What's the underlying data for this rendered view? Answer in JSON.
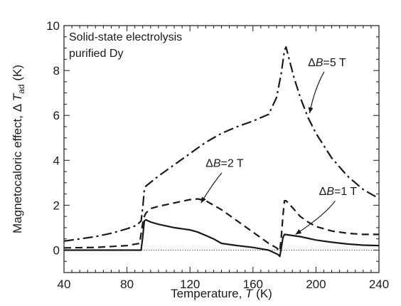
{
  "chart_data": {
    "type": "line",
    "title": "",
    "xlabel": "Temperature, T (K)",
    "ylabel": "Magnetocaloric effect, ΔT_ad (K)",
    "xlim": [
      40,
      240
    ],
    "ylim": [
      -1,
      10
    ],
    "x_ticks": [
      40,
      80,
      120,
      160,
      200,
      240
    ],
    "y_ticks": [
      0,
      2,
      4,
      6,
      8,
      10
    ],
    "x_tick_labels": [
      "40",
      "80",
      "120",
      "160",
      "200",
      "240"
    ],
    "y_tick_labels": [
      "0",
      "2",
      "4",
      "6",
      "8",
      "10"
    ],
    "grid": false,
    "zero_line": "dotted",
    "annotation": [
      "Solid-state electrolysis",
      "purified Dy"
    ],
    "series": [
      {
        "name": "ΔB=5 T",
        "style": "dash-dot",
        "points": [
          [
            40,
            0.4
          ],
          [
            50,
            0.5
          ],
          [
            60,
            0.6
          ],
          [
            70,
            0.75
          ],
          [
            80,
            0.95
          ],
          [
            86,
            1.1
          ],
          [
            89,
            1.3
          ],
          [
            90,
            1.9
          ],
          [
            91,
            2.7
          ],
          [
            92,
            2.85
          ],
          [
            100,
            3.3
          ],
          [
            110,
            3.8
          ],
          [
            120,
            4.3
          ],
          [
            130,
            4.8
          ],
          [
            140,
            5.2
          ],
          [
            150,
            5.5
          ],
          [
            160,
            5.75
          ],
          [
            170,
            6.05
          ],
          [
            175,
            6.8
          ],
          [
            178,
            7.9
          ],
          [
            180,
            8.9
          ],
          [
            181,
            9.05
          ],
          [
            183,
            8.5
          ],
          [
            186,
            7.7
          ],
          [
            190,
            6.8
          ],
          [
            195,
            5.9
          ],
          [
            200,
            5.2
          ],
          [
            210,
            4.1
          ],
          [
            220,
            3.3
          ],
          [
            230,
            2.7
          ],
          [
            240,
            2.3
          ]
        ]
      },
      {
        "name": "ΔB=2 T",
        "style": "dashed",
        "points": [
          [
            40,
            0.1
          ],
          [
            60,
            0.12
          ],
          [
            80,
            0.2
          ],
          [
            88,
            0.3
          ],
          [
            90,
            1.2
          ],
          [
            91,
            1.5
          ],
          [
            92,
            1.65
          ],
          [
            95,
            1.85
          ],
          [
            100,
            1.95
          ],
          [
            110,
            2.1
          ],
          [
            120,
            2.25
          ],
          [
            125,
            2.28
          ],
          [
            130,
            2.2
          ],
          [
            140,
            1.8
          ],
          [
            150,
            1.3
          ],
          [
            160,
            0.8
          ],
          [
            170,
            0.3
          ],
          [
            175,
            0.1
          ],
          [
            177,
            -0.05
          ],
          [
            178,
            0.6
          ],
          [
            179,
            1.5
          ],
          [
            180,
            2.2
          ],
          [
            181,
            2.2
          ],
          [
            185,
            1.9
          ],
          [
            190,
            1.5
          ],
          [
            195,
            1.25
          ],
          [
            200,
            1.05
          ],
          [
            210,
            0.85
          ],
          [
            220,
            0.75
          ],
          [
            230,
            0.7
          ],
          [
            240,
            0.7
          ]
        ]
      },
      {
        "name": "ΔB=1 T",
        "style": "solid",
        "points": [
          [
            40,
            0.0
          ],
          [
            60,
            0.0
          ],
          [
            80,
            0.0
          ],
          [
            89,
            0.0
          ],
          [
            90,
            0.6
          ],
          [
            91,
            1.3
          ],
          [
            92,
            1.35
          ],
          [
            95,
            1.25
          ],
          [
            100,
            1.15
          ],
          [
            110,
            1.0
          ],
          [
            120,
            0.9
          ],
          [
            125,
            0.8
          ],
          [
            130,
            0.65
          ],
          [
            135,
            0.5
          ],
          [
            140,
            0.3
          ],
          [
            150,
            0.2
          ],
          [
            160,
            0.12
          ],
          [
            170,
            0.0
          ],
          [
            176,
            -0.2
          ],
          [
            177,
            -0.28
          ],
          [
            178,
            0.1
          ],
          [
            179,
            0.55
          ],
          [
            180,
            0.7
          ],
          [
            190,
            0.6
          ],
          [
            200,
            0.45
          ],
          [
            210,
            0.35
          ],
          [
            220,
            0.27
          ],
          [
            230,
            0.22
          ],
          [
            240,
            0.2
          ]
        ]
      }
    ],
    "series_labels": [
      {
        "text_prefix": "Δ",
        "var": "B",
        "text_suffix": "=5 T",
        "x": 207,
        "y": 8.2,
        "arrow_to": [
          196,
          6.1
        ]
      },
      {
        "text_prefix": "Δ",
        "var": "B",
        "text_suffix": "=2 T",
        "x": 142,
        "y": 3.7,
        "arrow_to": [
          127,
          2.1
        ]
      },
      {
        "text_prefix": "Δ",
        "var": "B",
        "text_suffix": "=1 T",
        "x": 214,
        "y": 2.45,
        "arrow_to": [
          187,
          0.7
        ]
      }
    ]
  }
}
